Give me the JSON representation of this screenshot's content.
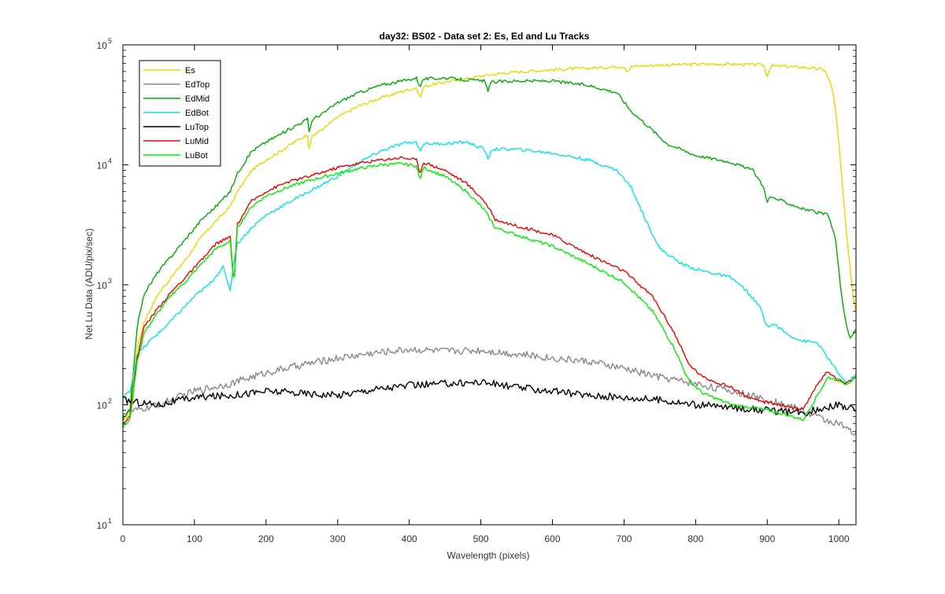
{
  "chart_data": {
    "type": "line",
    "title": "day32: BS02 - Data set 2: Es, Ed and Lu Tracks",
    "xlabel": "Wavelength (pixels)",
    "ylabel": "Net Lu Data (ADU/pix/sec)",
    "xlim": [
      0,
      1024
    ],
    "ylim": [
      10,
      100000
    ],
    "yscale": "log",
    "xticks": [
      0,
      100,
      200,
      300,
      400,
      500,
      600,
      700,
      800,
      900,
      1000
    ],
    "yticks": [
      {
        "value": 10,
        "base": "10",
        "exp": "1"
      },
      {
        "value": 100,
        "base": "10",
        "exp": "2"
      },
      {
        "value": 1000,
        "base": "10",
        "exp": "3"
      },
      {
        "value": 10000,
        "base": "10",
        "exp": "4"
      },
      {
        "value": 100000,
        "base": "10",
        "exp": "5"
      }
    ],
    "grid": false,
    "legend_position": "top-left",
    "series": [
      {
        "name": "Es",
        "color": "#e6d800",
        "points": [
          [
            0,
            72
          ],
          [
            10,
            85
          ],
          [
            20,
            300
          ],
          [
            30,
            500
          ],
          [
            50,
            850
          ],
          [
            70,
            1200
          ],
          [
            90,
            1700
          ],
          [
            110,
            2500
          ],
          [
            130,
            3400
          ],
          [
            150,
            4500
          ],
          [
            160,
            6000
          ],
          [
            180,
            9000
          ],
          [
            200,
            11000
          ],
          [
            220,
            13000
          ],
          [
            240,
            15500
          ],
          [
            258,
            18000
          ],
          [
            260,
            14000
          ],
          [
            265,
            17500
          ],
          [
            280,
            20000
          ],
          [
            300,
            25000
          ],
          [
            330,
            31000
          ],
          [
            360,
            36000
          ],
          [
            390,
            41000
          ],
          [
            410,
            44000
          ],
          [
            415,
            36000
          ],
          [
            420,
            45000
          ],
          [
            450,
            49000
          ],
          [
            480,
            52000
          ],
          [
            500,
            55000
          ],
          [
            530,
            58000
          ],
          [
            560,
            60000
          ],
          [
            600,
            62000
          ],
          [
            650,
            64000
          ],
          [
            700,
            66000
          ],
          [
            705,
            60000
          ],
          [
            710,
            66000
          ],
          [
            750,
            68000
          ],
          [
            800,
            69000
          ],
          [
            850,
            69000
          ],
          [
            895,
            68000
          ],
          [
            900,
            55000
          ],
          [
            905,
            67000
          ],
          [
            950,
            65000
          ],
          [
            980,
            62000
          ],
          [
            990,
            45000
          ],
          [
            995,
            30000
          ],
          [
            1000,
            15000
          ],
          [
            1010,
            3000
          ],
          [
            1020,
            800
          ],
          [
            1024,
            600
          ]
        ]
      },
      {
        "name": "EdTop",
        "color": "#888888",
        "points": [
          [
            0,
            85
          ],
          [
            20,
            90
          ],
          [
            50,
            100
          ],
          [
            100,
            130
          ],
          [
            150,
            150
          ],
          [
            200,
            185
          ],
          [
            250,
            215
          ],
          [
            300,
            245
          ],
          [
            350,
            270
          ],
          [
            400,
            290
          ],
          [
            450,
            280
          ],
          [
            500,
            285
          ],
          [
            550,
            265
          ],
          [
            600,
            245
          ],
          [
            650,
            230
          ],
          [
            700,
            200
          ],
          [
            750,
            170
          ],
          [
            800,
            150
          ],
          [
            850,
            130
          ],
          [
            900,
            110
          ],
          [
            950,
            90
          ],
          [
            980,
            75
          ],
          [
            1000,
            70
          ],
          [
            1024,
            55
          ]
        ]
      },
      {
        "name": "EdMid",
        "color": "#00aa00",
        "points": [
          [
            0,
            75
          ],
          [
            10,
            90
          ],
          [
            20,
            450
          ],
          [
            30,
            850
          ],
          [
            50,
            1300
          ],
          [
            70,
            1800
          ],
          [
            90,
            2500
          ],
          [
            110,
            3500
          ],
          [
            130,
            4500
          ],
          [
            150,
            6000
          ],
          [
            160,
            8500
          ],
          [
            180,
            13000
          ],
          [
            200,
            15500
          ],
          [
            220,
            18000
          ],
          [
            240,
            21000
          ],
          [
            258,
            24000
          ],
          [
            260,
            19000
          ],
          [
            265,
            24000
          ],
          [
            280,
            27000
          ],
          [
            300,
            33000
          ],
          [
            330,
            40000
          ],
          [
            360,
            46000
          ],
          [
            390,
            50000
          ],
          [
            410,
            53000
          ],
          [
            415,
            45000
          ],
          [
            420,
            52000
          ],
          [
            450,
            53000
          ],
          [
            480,
            51000
          ],
          [
            505,
            50000
          ],
          [
            510,
            42000
          ],
          [
            515,
            49000
          ],
          [
            550,
            50000
          ],
          [
            600,
            50000
          ],
          [
            650,
            46000
          ],
          [
            690,
            40000
          ],
          [
            710,
            28000
          ],
          [
            730,
            22000
          ],
          [
            760,
            15000
          ],
          [
            800,
            12000
          ],
          [
            850,
            10500
          ],
          [
            880,
            9000
          ],
          [
            895,
            6500
          ],
          [
            900,
            5000
          ],
          [
            905,
            5400
          ],
          [
            950,
            4300
          ],
          [
            985,
            3800
          ],
          [
            995,
            2500
          ],
          [
            1005,
            700
          ],
          [
            1015,
            350
          ],
          [
            1024,
            420
          ]
        ]
      },
      {
        "name": "EdBot",
        "color": "#00e6e6",
        "points": [
          [
            0,
            115
          ],
          [
            10,
            130
          ],
          [
            20,
            260
          ],
          [
            40,
            350
          ],
          [
            60,
            450
          ],
          [
            80,
            600
          ],
          [
            100,
            800
          ],
          [
            120,
            1000
          ],
          [
            140,
            1400
          ],
          [
            150,
            900
          ],
          [
            155,
            1600
          ],
          [
            160,
            2200
          ],
          [
            180,
            3000
          ],
          [
            200,
            3800
          ],
          [
            230,
            4800
          ],
          [
            260,
            6000
          ],
          [
            300,
            8000
          ],
          [
            330,
            10500
          ],
          [
            360,
            13000
          ],
          [
            390,
            15000
          ],
          [
            410,
            15500
          ],
          [
            415,
            13000
          ],
          [
            420,
            15000
          ],
          [
            450,
            15000
          ],
          [
            480,
            15500
          ],
          [
            505,
            13500
          ],
          [
            510,
            11000
          ],
          [
            515,
            13500
          ],
          [
            550,
            13500
          ],
          [
            600,
            12500
          ],
          [
            650,
            11000
          ],
          [
            690,
            9000
          ],
          [
            710,
            6500
          ],
          [
            730,
            3500
          ],
          [
            750,
            2000
          ],
          [
            780,
            1500
          ],
          [
            800,
            1350
          ],
          [
            850,
            1150
          ],
          [
            870,
            900
          ],
          [
            890,
            650
          ],
          [
            900,
            450
          ],
          [
            910,
            470
          ],
          [
            930,
            380
          ],
          [
            950,
            340
          ],
          [
            970,
            330
          ],
          [
            990,
            220
          ],
          [
            1010,
            150
          ],
          [
            1024,
            180
          ]
        ]
      },
      {
        "name": "LuTop",
        "color": "#000000",
        "points": [
          [
            0,
            110
          ],
          [
            20,
            105
          ],
          [
            50,
            100
          ],
          [
            100,
            115
          ],
          [
            150,
            120
          ],
          [
            200,
            130
          ],
          [
            250,
            125
          ],
          [
            300,
            120
          ],
          [
            350,
            135
          ],
          [
            400,
            145
          ],
          [
            450,
            150
          ],
          [
            500,
            155
          ],
          [
            550,
            140
          ],
          [
            600,
            130
          ],
          [
            650,
            120
          ],
          [
            700,
            115
          ],
          [
            750,
            110
          ],
          [
            800,
            100
          ],
          [
            850,
            95
          ],
          [
            900,
            90
          ],
          [
            950,
            85
          ],
          [
            980,
            95
          ],
          [
            1000,
            100
          ],
          [
            1024,
            90
          ]
        ]
      },
      {
        "name": "LuMid",
        "color": "#ee0000",
        "points": [
          [
            0,
            70
          ],
          [
            10,
            80
          ],
          [
            20,
            250
          ],
          [
            30,
            450
          ],
          [
            50,
            650
          ],
          [
            70,
            900
          ],
          [
            90,
            1200
          ],
          [
            110,
            1600
          ],
          [
            130,
            2200
          ],
          [
            150,
            2500
          ],
          [
            155,
            1000
          ],
          [
            160,
            3200
          ],
          [
            180,
            5000
          ],
          [
            200,
            6000
          ],
          [
            230,
            7200
          ],
          [
            260,
            8000
          ],
          [
            300,
            9500
          ],
          [
            330,
            10300
          ],
          [
            360,
            11000
          ],
          [
            390,
            11500
          ],
          [
            410,
            11000
          ],
          [
            415,
            8500
          ],
          [
            420,
            10500
          ],
          [
            450,
            9000
          ],
          [
            480,
            7000
          ],
          [
            505,
            5000
          ],
          [
            520,
            3500
          ],
          [
            550,
            3100
          ],
          [
            600,
            2600
          ],
          [
            650,
            1800
          ],
          [
            700,
            1300
          ],
          [
            740,
            800
          ],
          [
            770,
            400
          ],
          [
            790,
            220
          ],
          [
            810,
            170
          ],
          [
            850,
            140
          ],
          [
            880,
            110
          ],
          [
            920,
            100
          ],
          [
            950,
            90
          ],
          [
            970,
            150
          ],
          [
            985,
            190
          ],
          [
            1000,
            160
          ],
          [
            1010,
            150
          ],
          [
            1024,
            170
          ]
        ]
      },
      {
        "name": "LuBot",
        "color": "#00ee00",
        "points": [
          [
            0,
            65
          ],
          [
            10,
            75
          ],
          [
            20,
            230
          ],
          [
            30,
            400
          ],
          [
            50,
            600
          ],
          [
            70,
            850
          ],
          [
            90,
            1100
          ],
          [
            110,
            1500
          ],
          [
            130,
            2000
          ],
          [
            150,
            2300
          ],
          [
            155,
            950
          ],
          [
            160,
            3000
          ],
          [
            180,
            4500
          ],
          [
            200,
            5500
          ],
          [
            230,
            6500
          ],
          [
            260,
            7400
          ],
          [
            300,
            8500
          ],
          [
            330,
            9300
          ],
          [
            360,
            10000
          ],
          [
            390,
            10200
          ],
          [
            410,
            9800
          ],
          [
            415,
            7500
          ],
          [
            420,
            9500
          ],
          [
            450,
            8000
          ],
          [
            480,
            6000
          ],
          [
            505,
            4200
          ],
          [
            520,
            3000
          ],
          [
            550,
            2600
          ],
          [
            600,
            2100
          ],
          [
            650,
            1500
          ],
          [
            700,
            1050
          ],
          [
            740,
            600
          ],
          [
            770,
            300
          ],
          [
            790,
            160
          ],
          [
            810,
            125
          ],
          [
            850,
            100
          ],
          [
            880,
            95
          ],
          [
            920,
            85
          ],
          [
            950,
            75
          ],
          [
            970,
            120
          ],
          [
            985,
            170
          ],
          [
            1000,
            160
          ],
          [
            1010,
            150
          ],
          [
            1024,
            165
          ]
        ]
      }
    ]
  }
}
